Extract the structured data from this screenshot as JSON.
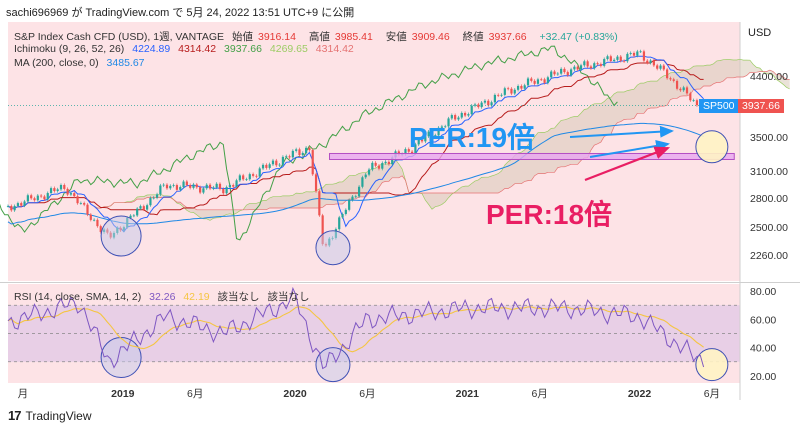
{
  "header": {
    "line": "sachi696969 が TradingView.com で 5月 24, 2022 13:51 UTC+9 に公開"
  },
  "legend": {
    "main": {
      "name": "S&P Index Cash CFD (USD), 1週, VANTAGE",
      "open_label": "始値",
      "open": "3916.14",
      "high_label": "高値",
      "high": "3985.41",
      "low_label": "安値",
      "low": "3909.46",
      "close_label": "終値",
      "close": "3937.66",
      "change": "+32.47 (+0.83%)"
    },
    "ichimoku": {
      "name": "Ichimoku (9, 26, 52, 26)",
      "v1": "4224.89",
      "v2": "4314.42",
      "v3": "3937.66",
      "v4": "4269.65",
      "v5": "4314.42"
    },
    "ma": {
      "name": "MA (200, close, 0)",
      "v1": "3485.67"
    },
    "rsi": {
      "name": "RSI (14, close, SMA, 14, 2)",
      "v1": "32.26",
      "v2": "42.19",
      "v3": "該当なし",
      "v4": "該当なし"
    }
  },
  "axis": {
    "currency": "USD",
    "price_ticks": [
      "4400.00",
      "3500.00",
      "3100.00",
      "2800.00",
      "2500.00",
      "2260.00"
    ],
    "rsi_ticks": [
      "80.00",
      "60.00",
      "40.00",
      "20.00"
    ],
    "time_labels": [
      "月",
      "2019",
      "6月",
      "2020",
      "6月",
      "2021",
      "6月",
      "2022",
      "6月"
    ]
  },
  "price_tag": {
    "symbol": "SP500",
    "value": "3937.66"
  },
  "annotations": {
    "per19": "PER:19倍",
    "per18": "PER:18倍"
  },
  "footer": {
    "logo": "17",
    "brand": "TradingView"
  },
  "colors": {
    "up": "#26a69a",
    "down": "#ef5350",
    "tenkan": "#2962ff",
    "kijun": "#b71c1c",
    "chikou": "#43a047",
    "ma": "#1e88e5",
    "rsi": "#7e57c2",
    "rsi_ma": "#f5c542",
    "per19": "#2196f3",
    "per18": "#e91e63"
  },
  "chart_data": {
    "type": "candlestick",
    "title": "S&P Index Cash CFD (USD), 1週, VANTAGE",
    "x_range": [
      "2018-05",
      "2022-08"
    ],
    "ylim": [
      2260,
      4400
    ],
    "scale": "log",
    "series": [
      {
        "name": "S&P Index Cash CFD",
        "type": "candlestick",
        "approx_close_path": [
          [
            "2018-05",
            2700
          ],
          [
            "2018-09",
            2920
          ],
          [
            "2018-12",
            2400
          ],
          [
            "2019-04",
            2940
          ],
          [
            "2019-08",
            2900
          ],
          [
            "2019-12",
            3230
          ],
          [
            "2020-02",
            3370
          ],
          [
            "2020-03",
            2300
          ],
          [
            "2020-06",
            3100
          ],
          [
            "2020-09",
            3350
          ],
          [
            "2020-12",
            3750
          ],
          [
            "2021-04",
            4180
          ],
          [
            "2021-08",
            4500
          ],
          [
            "2022-01",
            4790
          ],
          [
            "2022-03",
            4400
          ],
          [
            "2022-05",
            3937.66
          ]
        ]
      },
      {
        "name": "MA (200, close, 0)",
        "type": "line",
        "last": 3485.67
      }
    ],
    "rsi": {
      "ylim": [
        15,
        85
      ],
      "bands": [
        30,
        50,
        70
      ],
      "approx_path": [
        [
          "2018-05",
          58
        ],
        [
          "2018-10",
          72
        ],
        [
          "2018-12",
          30
        ],
        [
          "2019-04",
          62
        ],
        [
          "2019-08",
          50
        ],
        [
          "2020-01",
          75
        ],
        [
          "2020-03",
          25
        ],
        [
          "2020-06",
          60
        ],
        [
          "2021-01",
          68
        ],
        [
          "2021-08",
          68
        ],
        [
          "2022-01",
          62
        ],
        [
          "2022-05",
          32.26
        ]
      ]
    },
    "highlights": {
      "per19_price": 3600,
      "per18_price": 3300,
      "support_zone": [
        3230,
        3300
      ]
    }
  }
}
